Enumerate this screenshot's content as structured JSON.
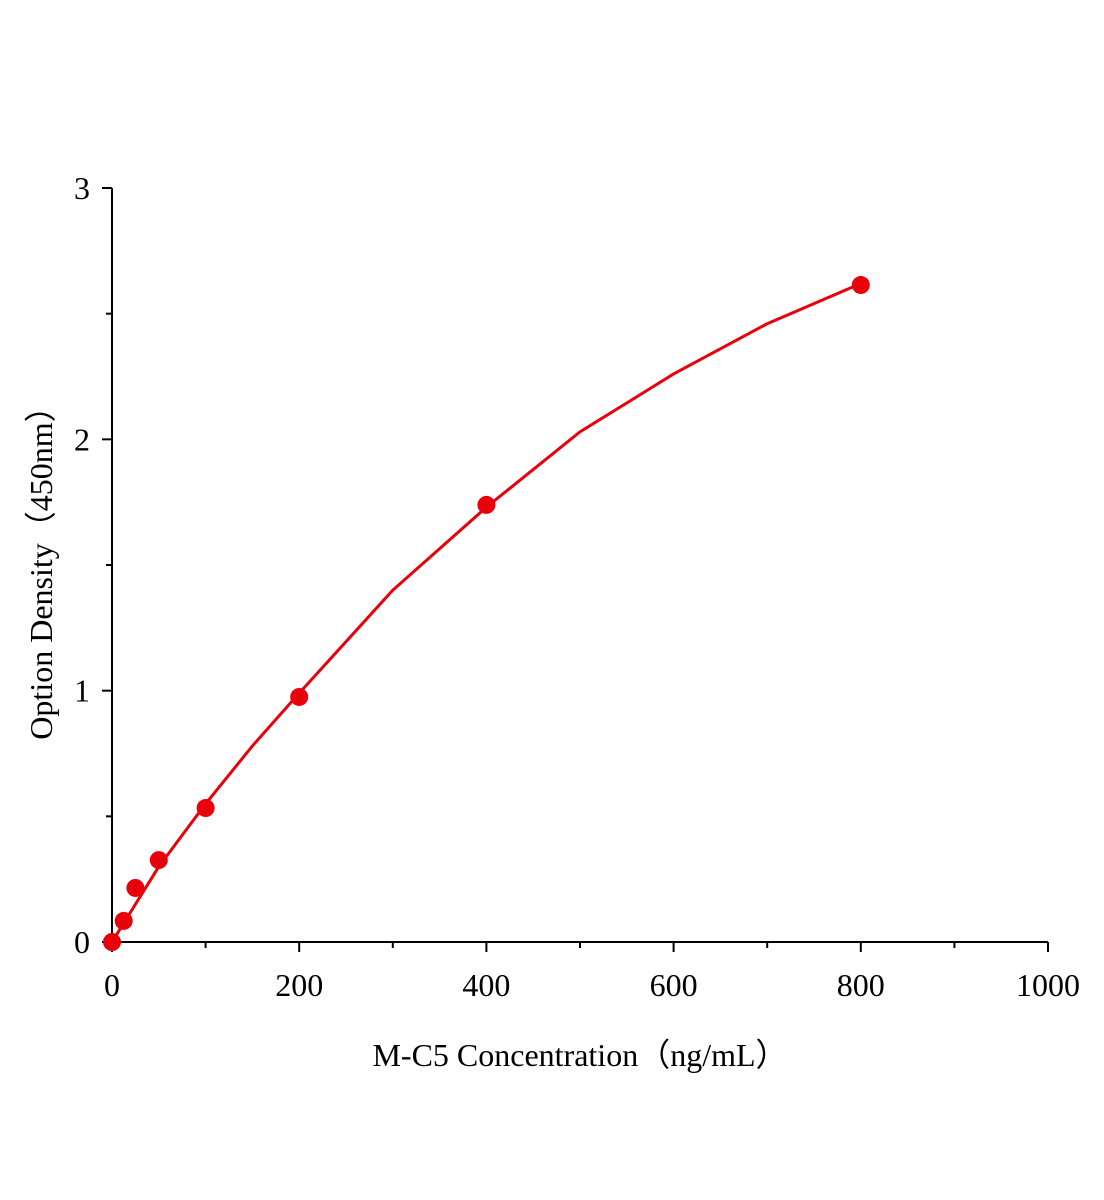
{
  "chart_data": {
    "type": "scatter",
    "xlabel": "M-C5 Concentration（ng/mL）",
    "ylabel": "Option Density（450nm）",
    "x": [
      0,
      12.5,
      25,
      50,
      100,
      200,
      400,
      800
    ],
    "values": [
      0.0,
      0.084,
      0.215,
      0.326,
      0.533,
      0.975,
      1.739,
      2.614
    ],
    "color": "#e8000b",
    "fit": {
      "x": [
        0,
        50,
        100,
        150,
        200,
        300,
        400,
        500,
        600,
        700,
        800
      ],
      "values": [
        0,
        0.3,
        0.55,
        0.78,
        0.99,
        1.4,
        1.73,
        2.03,
        2.26,
        2.46,
        2.62
      ]
    },
    "xlim": [
      0,
      1000
    ],
    "xticks": [
      0,
      200,
      400,
      600,
      800,
      1000
    ],
    "xminorticks": [
      100,
      300,
      500,
      700,
      900
    ],
    "ylim": [
      0,
      3
    ],
    "yticks": [
      0,
      1,
      2,
      3
    ],
    "yminorticks": [
      0.5,
      1.5,
      2.5
    ]
  }
}
